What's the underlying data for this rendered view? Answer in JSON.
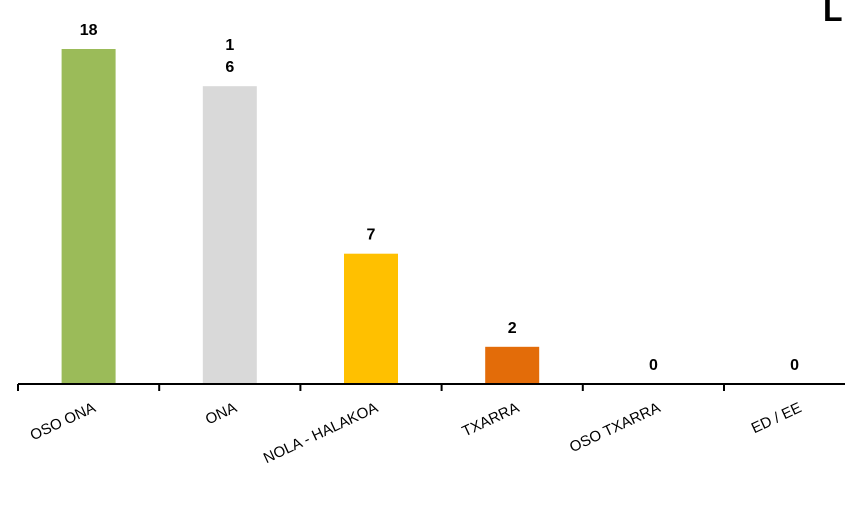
{
  "chart_data": {
    "type": "bar",
    "title": "L",
    "categories": [
      "OSO ONA",
      "ONA",
      "NOLA - HALAKOA",
      "TXARRA",
      "OSO TXARRA",
      "ED / EE"
    ],
    "values": [
      18,
      16,
      7,
      2,
      0,
      0
    ],
    "data_labels": [
      [
        "18"
      ],
      [
        "1",
        "6"
      ],
      [
        "7"
      ],
      [
        "2"
      ],
      [
        "0"
      ],
      [
        "0"
      ]
    ],
    "colors": [
      "#9BBB59",
      "#D9D9D9",
      "#FFC000",
      "#E36C09",
      "#E36C09",
      "#E36C09"
    ],
    "xlabel": "",
    "ylabel": "",
    "ylim": [
      0,
      18
    ],
    "grid": false,
    "legend": "none"
  }
}
